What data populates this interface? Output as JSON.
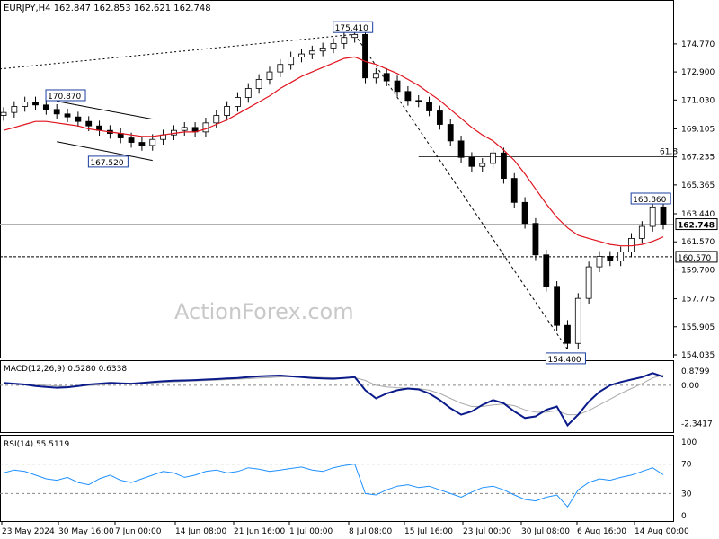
{
  "header": {
    "symbol_info": "EURJPY,H4  162.847 162.853 162.621 162.748"
  },
  "watermark": "ActionForex.com",
  "chart_data": [
    {
      "type": "candlestick",
      "title": "EURJPY,H4",
      "ohlc_last": {
        "open": 162.847,
        "high": 162.853,
        "low": 162.621,
        "close": 162.748
      },
      "ylim": [
        154.035,
        176.5
      ],
      "y_ticks": [
        "174.770",
        "172.900",
        "171.030",
        "169.105",
        "167.235",
        "165.365",
        "163.440",
        "161.570",
        "159.700",
        "157.775",
        "155.905",
        "154.035"
      ],
      "x_ticks": [
        "23 May 2024",
        "30 May 16:00",
        "7 Jun 00:00",
        "14 Jun 08:00",
        "21 Jun 16:00",
        "1 Jul 00:00",
        "8 Jul 08:00",
        "15 Jul 16:00",
        "23 Jul 00:00",
        "30 Jul 08:00",
        "6 Aug 16:00",
        "14 Aug 00:00"
      ],
      "close_series": [
        170.2,
        170.6,
        170.9,
        170.7,
        170.4,
        170.1,
        169.9,
        169.6,
        169.3,
        169.0,
        168.8,
        168.5,
        168.2,
        168.0,
        168.4,
        168.7,
        169.0,
        169.2,
        168.9,
        169.5,
        170.0,
        170.6,
        171.2,
        171.8,
        172.4,
        172.9,
        173.4,
        173.9,
        174.1,
        174.3,
        174.5,
        174.8,
        175.2,
        175.4,
        172.5,
        172.8,
        172.3,
        171.6,
        171.0,
        170.9,
        170.3,
        169.4,
        168.3,
        167.2,
        166.6,
        166.8,
        167.5,
        165.8,
        164.2,
        162.8,
        160.7,
        158.6,
        156.0,
        154.8,
        157.8,
        159.9,
        160.6,
        160.3,
        160.9,
        161.8,
        162.6,
        163.9,
        162.75
      ],
      "ma_series": [
        169.0,
        169.2,
        169.4,
        169.6,
        169.6,
        169.5,
        169.4,
        169.3,
        169.1,
        169.0,
        168.9,
        168.8,
        168.7,
        168.6,
        168.6,
        168.7,
        168.8,
        168.9,
        168.9,
        169.1,
        169.4,
        169.7,
        170.1,
        170.5,
        170.9,
        171.3,
        171.8,
        172.2,
        172.6,
        172.9,
        173.2,
        173.5,
        173.8,
        173.9,
        173.6,
        173.4,
        173.1,
        172.8,
        172.4,
        172.0,
        171.5,
        171.0,
        170.4,
        169.8,
        169.2,
        168.7,
        168.3,
        167.7,
        167.0,
        166.1,
        165.1,
        164.1,
        163.2,
        162.5,
        162.0,
        161.8,
        161.6,
        161.4,
        161.3,
        161.3,
        161.4,
        161.6,
        161.9
      ],
      "annotations": [
        "175.410",
        "170.870",
        "167.520",
        "163.860",
        "154.400"
      ],
      "fib_label": "61.8",
      "fib_level": 167.235,
      "support_level": 160.57,
      "support_label": "160.570",
      "current_label": "162.748",
      "channel": {
        "upper": [
          170.95,
          169.75
        ],
        "lower": [
          168.25,
          167.0
        ]
      },
      "trendline": {
        "from": 173.1,
        "to": 175.41
      },
      "fib_retrace": {
        "from": 175.41,
        "to": 154.4
      }
    },
    {
      "type": "line",
      "title": "MACD(12,26,9) 0.5280 0.6338",
      "ylim": [
        -2.7,
        1.15
      ],
      "y_ticks": [
        "0.8799",
        "0.00",
        "-2.3417"
      ],
      "macd_series": [
        0.15,
        0.1,
        0.05,
        -0.05,
        -0.1,
        -0.15,
        -0.12,
        -0.05,
        0.05,
        0.1,
        0.15,
        0.12,
        0.1,
        0.15,
        0.2,
        0.25,
        0.28,
        0.3,
        0.32,
        0.35,
        0.38,
        0.42,
        0.45,
        0.5,
        0.55,
        0.58,
        0.6,
        0.55,
        0.5,
        0.45,
        0.42,
        0.4,
        0.45,
        0.5,
        -0.3,
        -0.8,
        -0.5,
        -0.3,
        -0.2,
        -0.25,
        -0.5,
        -0.9,
        -1.4,
        -1.8,
        -1.6,
        -1.2,
        -0.9,
        -1.1,
        -1.6,
        -2.0,
        -1.9,
        -1.5,
        -1.3,
        -2.45,
        -1.8,
        -1.0,
        -0.4,
        0.0,
        0.2,
        0.35,
        0.5,
        0.75,
        0.53
      ],
      "signal_series": [
        0.1,
        0.1,
        0.08,
        0.05,
        0.0,
        -0.05,
        -0.08,
        -0.06,
        -0.02,
        0.03,
        0.07,
        0.09,
        0.1,
        0.12,
        0.15,
        0.18,
        0.21,
        0.24,
        0.27,
        0.29,
        0.32,
        0.35,
        0.38,
        0.41,
        0.45,
        0.48,
        0.52,
        0.53,
        0.52,
        0.5,
        0.48,
        0.46,
        0.46,
        0.47,
        0.3,
        0.0,
        -0.1,
        -0.15,
        -0.18,
        -0.2,
        -0.3,
        -0.5,
        -0.8,
        -1.1,
        -1.3,
        -1.3,
        -1.2,
        -1.15,
        -1.25,
        -1.5,
        -1.65,
        -1.65,
        -1.55,
        -1.8,
        -1.8,
        -1.55,
        -1.2,
        -0.85,
        -0.5,
        -0.2,
        0.1,
        0.45,
        0.63
      ]
    },
    {
      "type": "line",
      "title": "RSI(14) 55.5119",
      "ylim": [
        0,
        100
      ],
      "y_ticks": [
        "100",
        "70",
        "30",
        "0"
      ],
      "levels": [
        70,
        30
      ],
      "rsi_series": [
        58,
        62,
        60,
        55,
        50,
        48,
        52,
        45,
        42,
        50,
        55,
        48,
        45,
        50,
        55,
        60,
        58,
        52,
        55,
        60,
        62,
        58,
        60,
        65,
        63,
        60,
        62,
        64,
        66,
        62,
        60,
        65,
        68,
        70,
        30,
        28,
        35,
        40,
        42,
        38,
        40,
        35,
        30,
        25,
        32,
        38,
        40,
        35,
        28,
        22,
        20,
        25,
        28,
        12,
        35,
        45,
        50,
        48,
        52,
        55,
        60,
        65,
        55.5
      ]
    }
  ]
}
